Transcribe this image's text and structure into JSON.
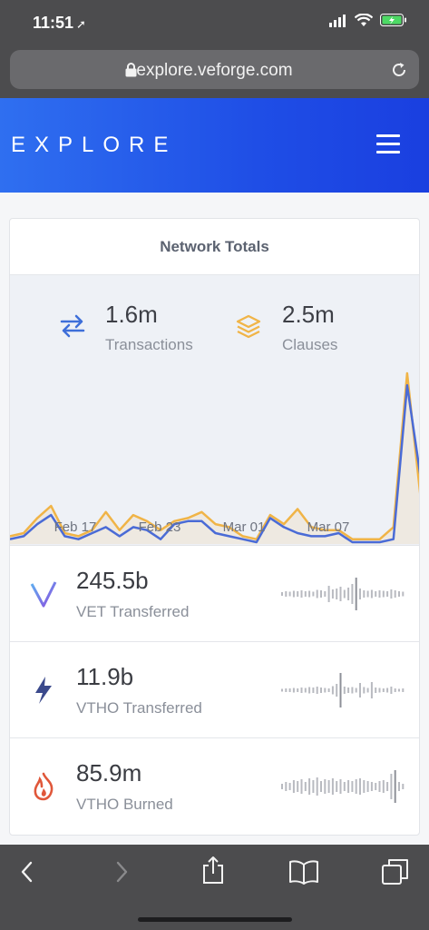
{
  "status_bar": {
    "time": "11:51"
  },
  "browser": {
    "url": "explore.veforge.com"
  },
  "header": {
    "brand": "EXPLORE"
  },
  "card": {
    "title": "Network Totals",
    "transactions": {
      "value": "1.6m",
      "label": "Transactions"
    },
    "clauses": {
      "value": "2.5m",
      "label": "Clauses"
    }
  },
  "chart_data": {
    "type": "line",
    "x_tick_labels": [
      "Feb 17",
      "Feb 23",
      "Mar 01",
      "Mar 07"
    ],
    "series": [
      {
        "name": "Clauses",
        "color": "#f0b447",
        "values": [
          2,
          3,
          8,
          12,
          3,
          2,
          4,
          10,
          4,
          9,
          7,
          4,
          7,
          8,
          10,
          6,
          5,
          2,
          1,
          9,
          6,
          11,
          5,
          4,
          4,
          1,
          1,
          1,
          5,
          56,
          14
        ]
      },
      {
        "name": "Transactions",
        "color": "#4a6bd6",
        "values": [
          1,
          2,
          6,
          9,
          2,
          1,
          3,
          5,
          2,
          5,
          4,
          1,
          6,
          7,
          7,
          3,
          2,
          1,
          0,
          8,
          5,
          3,
          2,
          2,
          3,
          0,
          0,
          0,
          1,
          52,
          21
        ]
      }
    ]
  },
  "rows": [
    {
      "value": "245.5b",
      "label": "VET Transferred",
      "icon": "vet-icon",
      "color": "#7a6be0"
    },
    {
      "value": "11.9b",
      "label": "VTHO Transferred",
      "icon": "lightning-icon",
      "color": "#3b4a8c"
    },
    {
      "value": "85.9m",
      "label": "VTHO Burned",
      "icon": "flame-icon",
      "color": "#e0573a"
    }
  ]
}
